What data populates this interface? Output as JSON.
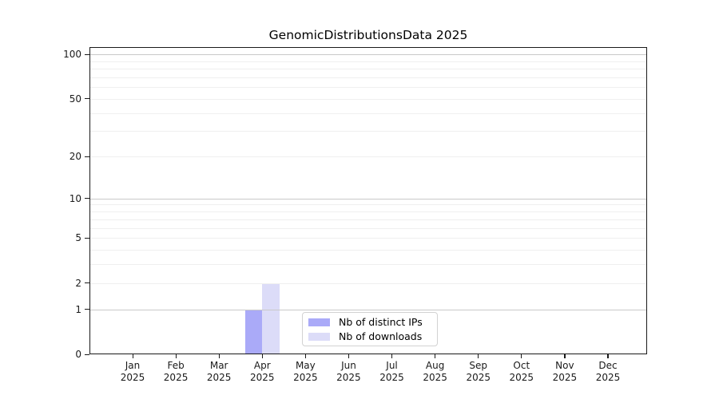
{
  "chart_data": {
    "type": "bar",
    "title": "GenomicDistributionsData 2025",
    "categories": [
      "Jan",
      "Feb",
      "Mar",
      "Apr",
      "May",
      "Jun",
      "Jul",
      "Aug",
      "Sep",
      "Oct",
      "Nov",
      "Dec"
    ],
    "category_year": "2025",
    "series": [
      {
        "name": "Nb of distinct IPs",
        "color": "#aaaaf8",
        "values": [
          0,
          0,
          0,
          1,
          0,
          0,
          0,
          0,
          0,
          0,
          0,
          0
        ]
      },
      {
        "name": "Nb of downloads",
        "color": "#dcdcf8",
        "values": [
          0,
          0,
          0,
          2,
          0,
          0,
          0,
          0,
          0,
          0,
          0,
          0
        ]
      }
    ],
    "y_axis": {
      "scale": "log1p",
      "tick_values": [
        0,
        1,
        2,
        5,
        10,
        20,
        50,
        100
      ],
      "tick_labels": [
        "0",
        "1",
        "2",
        "5",
        "10",
        "20",
        "50",
        "100"
      ],
      "major_grid_values": [
        1,
        10,
        100
      ],
      "minor_grid_values": [
        2,
        3,
        4,
        5,
        6,
        7,
        8,
        9,
        20,
        30,
        40,
        50,
        60,
        70,
        80,
        90
      ],
      "display_max": 112,
      "ylim": [
        0,
        112
      ]
    },
    "grid": "on",
    "legend_position": "lower-center-inside",
    "colors": {
      "major_grid": "#c9c9c9",
      "minor_grid": "#efefef",
      "axis": "#1a1a1a",
      "background": "#ffffff"
    }
  }
}
